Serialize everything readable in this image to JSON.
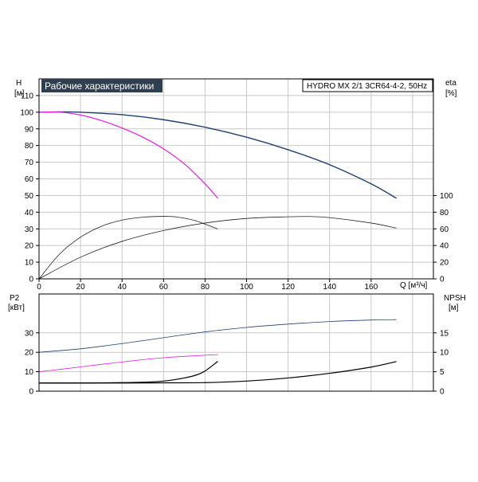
{
  "chart_data": [
    {
      "type": "line",
      "title": "Рабочие характеристики",
      "model": "HYDRO MX 2/1 3CR64-4-2, 50Hz",
      "xlabel": "Q [м³/ч]",
      "xlim": [
        0,
        190
      ],
      "xticks": [
        0,
        20,
        40,
        60,
        80,
        100,
        120,
        140,
        160
      ],
      "left_axis": {
        "name": "H",
        "unit": "[м]",
        "ylim": [
          0,
          120
        ],
        "ticks": [
          0,
          10,
          20,
          30,
          40,
          50,
          60,
          70,
          80,
          90,
          100,
          110
        ]
      },
      "right_axis": {
        "name": "eta",
        "unit": "[%]",
        "ylim": [
          0,
          240
        ],
        "ticks": [
          0,
          20,
          40,
          60,
          80,
          100
        ]
      },
      "grid": true,
      "series": [
        {
          "axis": "left",
          "color": "#1f3f6e",
          "width": 1.4,
          "x": [
            0,
            10,
            20,
            40,
            60,
            80,
            100,
            120,
            140,
            160,
            172
          ],
          "y": [
            100,
            100.2,
            100,
            98.5,
            95.5,
            91,
            85,
            77.5,
            68.5,
            57,
            48.5
          ]
        },
        {
          "axis": "left",
          "color": "#e020e0",
          "width": 1.2,
          "x": [
            0,
            10,
            20,
            30,
            40,
            50,
            60,
            70,
            80,
            86
          ],
          "y": [
            100,
            100,
            98.3,
            95,
            90.5,
            85,
            78,
            69,
            57,
            48.5
          ]
        },
        {
          "axis": "right",
          "color": "#222222",
          "width": 0.8,
          "x": [
            0,
            10,
            20,
            30,
            40,
            50,
            60,
            66,
            75,
            86
          ],
          "y": [
            0,
            30,
            50,
            63,
            70.5,
            74,
            75,
            74.3,
            70,
            60
          ]
        },
        {
          "axis": "right",
          "color": "#222222",
          "width": 0.8,
          "x": [
            0,
            20,
            40,
            60,
            80,
            100,
            120,
            130,
            140,
            160,
            172
          ],
          "y": [
            0,
            26,
            45,
            58,
            67,
            72.5,
            74.5,
            74.8,
            73.5,
            67,
            61
          ]
        }
      ]
    },
    {
      "type": "line",
      "left_axis": {
        "name": "P2",
        "unit": "[кВт]",
        "ylim": [
          0,
          50
        ],
        "ticks": [
          0,
          10,
          20,
          30
        ]
      },
      "right_axis": {
        "name": "NPSH",
        "unit": "[м]",
        "ylim": [
          0,
          25
        ],
        "ticks": [
          0,
          5,
          10,
          15
        ]
      },
      "xlim": [
        0,
        190
      ],
      "grid": true,
      "series": [
        {
          "axis": "left",
          "color": "#1f3f6e",
          "width": 0.8,
          "x": [
            0,
            20,
            40,
            60,
            80,
            100,
            120,
            140,
            160,
            172
          ],
          "y": [
            20,
            21.8,
            24.5,
            27.5,
            30.5,
            32.8,
            34.5,
            35.8,
            36.6,
            36.8
          ]
        },
        {
          "axis": "left",
          "color": "#e020e0",
          "width": 0.8,
          "x": [
            0,
            10,
            20,
            30,
            40,
            50,
            60,
            70,
            80,
            86
          ],
          "y": [
            10,
            11.2,
            12.5,
            13.8,
            15,
            16.2,
            17.2,
            17.9,
            18.5,
            18.8
          ]
        },
        {
          "axis": "right",
          "color": "#000000",
          "width": 1.2,
          "x": [
            0,
            20,
            40,
            50,
            60,
            70,
            76,
            80,
            86
          ],
          "y": [
            2.1,
            2.1,
            2.2,
            2.3,
            2.6,
            3.4,
            4.2,
            5.2,
            7.6
          ]
        },
        {
          "axis": "right",
          "color": "#000000",
          "width": 1.2,
          "x": [
            0,
            20,
            40,
            60,
            80,
            100,
            120,
            140,
            160,
            172
          ],
          "y": [
            2.1,
            2.1,
            2.1,
            2.15,
            2.2,
            2.6,
            3.4,
            4.6,
            6.2,
            7.6
          ]
        }
      ]
    }
  ]
}
